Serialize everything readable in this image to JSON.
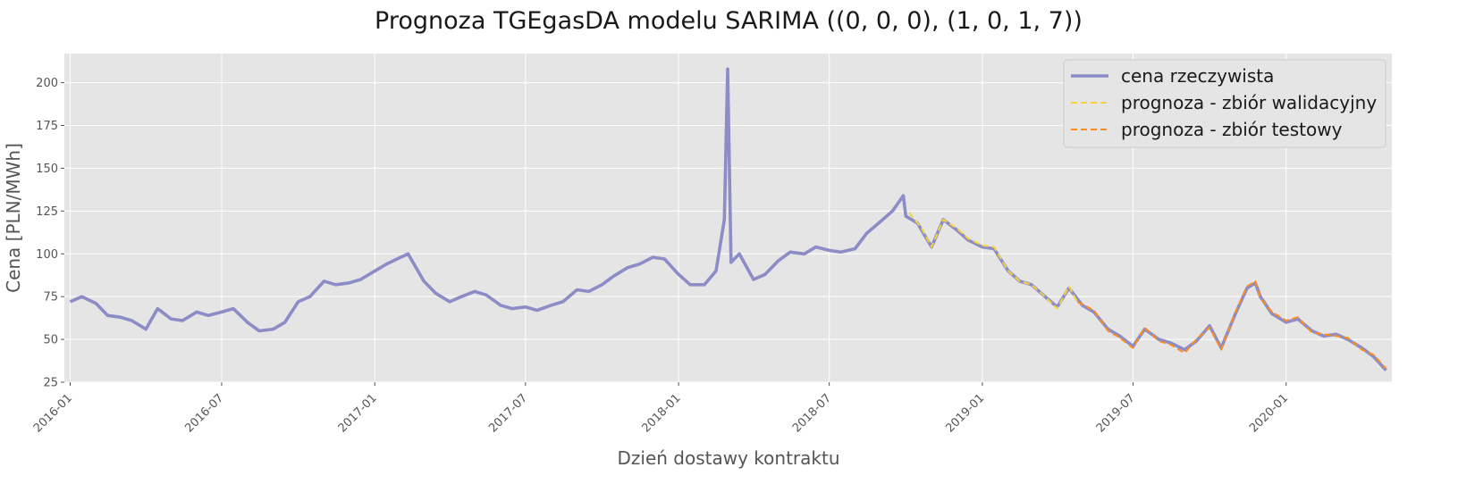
{
  "chart_data": {
    "type": "line",
    "title": "Prognoza TGEgasDA modelu SARIMA ((0, 0, 0), (1, 0, 1, 7))",
    "xlabel": "Dzień dostawy kontraktu",
    "ylabel": "Cena [PLN/MWh]",
    "x_ticks": [
      "2016-01",
      "2016-07",
      "2017-01",
      "2017-07",
      "2018-01",
      "2018-07",
      "2019-01",
      "2019-07",
      "2020-01"
    ],
    "y_ticks": [
      25,
      50,
      75,
      100,
      125,
      150,
      175,
      200
    ],
    "xlim": [
      "2015-12-25",
      "2020-05-07"
    ],
    "ylim": [
      25,
      217
    ],
    "grid": true,
    "legend_position": "top-right",
    "series": [
      {
        "name": "cena rzeczywista",
        "color": "#8c8cc6",
        "style": "solid",
        "points": [
          [
            "2016-01-01",
            72
          ],
          [
            "2016-01-15",
            75
          ],
          [
            "2016-02-01",
            71
          ],
          [
            "2016-02-15",
            64
          ],
          [
            "2016-03-01",
            63
          ],
          [
            "2016-03-15",
            61
          ],
          [
            "2016-04-01",
            56
          ],
          [
            "2016-04-15",
            68
          ],
          [
            "2016-05-01",
            62
          ],
          [
            "2016-05-15",
            61
          ],
          [
            "2016-06-01",
            66
          ],
          [
            "2016-06-15",
            64
          ],
          [
            "2016-07-01",
            66
          ],
          [
            "2016-07-15",
            68
          ],
          [
            "2016-08-01",
            60
          ],
          [
            "2016-08-15",
            55
          ],
          [
            "2016-09-01",
            56
          ],
          [
            "2016-09-15",
            60
          ],
          [
            "2016-10-01",
            72
          ],
          [
            "2016-10-15",
            75
          ],
          [
            "2016-11-01",
            84
          ],
          [
            "2016-11-15",
            82
          ],
          [
            "2016-12-01",
            83
          ],
          [
            "2016-12-15",
            85
          ],
          [
            "2017-01-01",
            90
          ],
          [
            "2017-01-15",
            94
          ],
          [
            "2017-02-01",
            98
          ],
          [
            "2017-02-10",
            100
          ],
          [
            "2017-03-01",
            84
          ],
          [
            "2017-03-15",
            77
          ],
          [
            "2017-04-01",
            72
          ],
          [
            "2017-04-15",
            75
          ],
          [
            "2017-05-01",
            78
          ],
          [
            "2017-05-15",
            76
          ],
          [
            "2017-06-01",
            70
          ],
          [
            "2017-06-15",
            68
          ],
          [
            "2017-07-01",
            69
          ],
          [
            "2017-07-15",
            67
          ],
          [
            "2017-08-01",
            70
          ],
          [
            "2017-08-15",
            72
          ],
          [
            "2017-09-01",
            79
          ],
          [
            "2017-09-15",
            78
          ],
          [
            "2017-10-01",
            82
          ],
          [
            "2017-10-15",
            87
          ],
          [
            "2017-11-01",
            92
          ],
          [
            "2017-11-15",
            94
          ],
          [
            "2017-12-01",
            98
          ],
          [
            "2017-12-15",
            97
          ],
          [
            "2018-01-01",
            88
          ],
          [
            "2018-01-15",
            82
          ],
          [
            "2018-02-01",
            82
          ],
          [
            "2018-02-15",
            90
          ],
          [
            "2018-02-25",
            120
          ],
          [
            "2018-03-01",
            208
          ],
          [
            "2018-03-05",
            95
          ],
          [
            "2018-03-15",
            100
          ],
          [
            "2018-04-01",
            85
          ],
          [
            "2018-04-15",
            88
          ],
          [
            "2018-05-01",
            96
          ],
          [
            "2018-05-15",
            101
          ],
          [
            "2018-06-01",
            100
          ],
          [
            "2018-06-15",
            104
          ],
          [
            "2018-07-01",
            102
          ],
          [
            "2018-07-15",
            101
          ],
          [
            "2018-08-01",
            103
          ],
          [
            "2018-08-15",
            112
          ],
          [
            "2018-09-01",
            119
          ],
          [
            "2018-09-15",
            125
          ],
          [
            "2018-09-28",
            134
          ],
          [
            "2018-10-01",
            122
          ],
          [
            "2018-10-15",
            118
          ],
          [
            "2018-11-01",
            104
          ],
          [
            "2018-11-15",
            120
          ],
          [
            "2018-12-01",
            114
          ],
          [
            "2018-12-15",
            108
          ],
          [
            "2019-01-01",
            104
          ],
          [
            "2019-01-15",
            103
          ],
          [
            "2019-02-01",
            90
          ],
          [
            "2019-02-15",
            84
          ],
          [
            "2019-03-01",
            82
          ],
          [
            "2019-03-15",
            76
          ],
          [
            "2019-04-01",
            69
          ],
          [
            "2019-04-15",
            80
          ],
          [
            "2019-05-01",
            70
          ],
          [
            "2019-05-15",
            66
          ],
          [
            "2019-06-01",
            56
          ],
          [
            "2019-06-15",
            52
          ],
          [
            "2019-07-01",
            46
          ],
          [
            "2019-07-15",
            56
          ],
          [
            "2019-08-01",
            50
          ],
          [
            "2019-08-15",
            48
          ],
          [
            "2019-09-01",
            44
          ],
          [
            "2019-09-15",
            49
          ],
          [
            "2019-10-01",
            58
          ],
          [
            "2019-10-15",
            45
          ],
          [
            "2019-11-01",
            65
          ],
          [
            "2019-11-15",
            80
          ],
          [
            "2019-11-25",
            83
          ],
          [
            "2019-12-01",
            75
          ],
          [
            "2019-12-15",
            65
          ],
          [
            "2020-01-01",
            60
          ],
          [
            "2020-01-15",
            62
          ],
          [
            "2020-02-01",
            55
          ],
          [
            "2020-02-15",
            52
          ],
          [
            "2020-03-01",
            53
          ],
          [
            "2020-03-15",
            50
          ],
          [
            "2020-04-01",
            45
          ],
          [
            "2020-04-15",
            40
          ],
          [
            "2020-04-30",
            32
          ]
        ]
      },
      {
        "name": "prognoza - zbiór walidacyjny",
        "color": "#f7d23d",
        "style": "dashed",
        "points": [
          [
            "2018-10-05",
            124
          ],
          [
            "2018-10-20",
            115
          ],
          [
            "2018-11-01",
            104
          ],
          [
            "2018-11-15",
            120
          ],
          [
            "2018-12-01",
            115
          ],
          [
            "2018-12-15",
            109
          ],
          [
            "2019-01-01",
            105
          ],
          [
            "2019-01-15",
            104
          ],
          [
            "2019-02-01",
            90
          ],
          [
            "2019-02-15",
            84
          ],
          [
            "2019-03-01",
            82
          ],
          [
            "2019-03-15",
            76
          ],
          [
            "2019-04-01",
            68
          ],
          [
            "2019-04-15",
            81
          ],
          [
            "2019-04-25",
            72
          ]
        ]
      },
      {
        "name": "prognoza - zbiór testowy",
        "color": "#ff8c1a",
        "style": "dashed",
        "points": [
          [
            "2019-04-25",
            72
          ],
          [
            "2019-05-15",
            67
          ],
          [
            "2019-06-01",
            55
          ],
          [
            "2019-06-15",
            51
          ],
          [
            "2019-07-01",
            45
          ],
          [
            "2019-07-15",
            57
          ],
          [
            "2019-08-01",
            49
          ],
          [
            "2019-08-15",
            47
          ],
          [
            "2019-09-01",
            42
          ],
          [
            "2019-09-15",
            50
          ],
          [
            "2019-10-01",
            57
          ],
          [
            "2019-10-15",
            44
          ],
          [
            "2019-11-01",
            66
          ],
          [
            "2019-11-15",
            81
          ],
          [
            "2019-11-25",
            84
          ],
          [
            "2019-12-01",
            74
          ],
          [
            "2019-12-15",
            66
          ],
          [
            "2020-01-01",
            61
          ],
          [
            "2020-01-15",
            63
          ],
          [
            "2020-02-01",
            54
          ],
          [
            "2020-02-15",
            53
          ],
          [
            "2020-03-01",
            52
          ],
          [
            "2020-03-15",
            51
          ],
          [
            "2020-04-01",
            44
          ],
          [
            "2020-04-15",
            41
          ],
          [
            "2020-04-30",
            33
          ]
        ]
      }
    ]
  }
}
